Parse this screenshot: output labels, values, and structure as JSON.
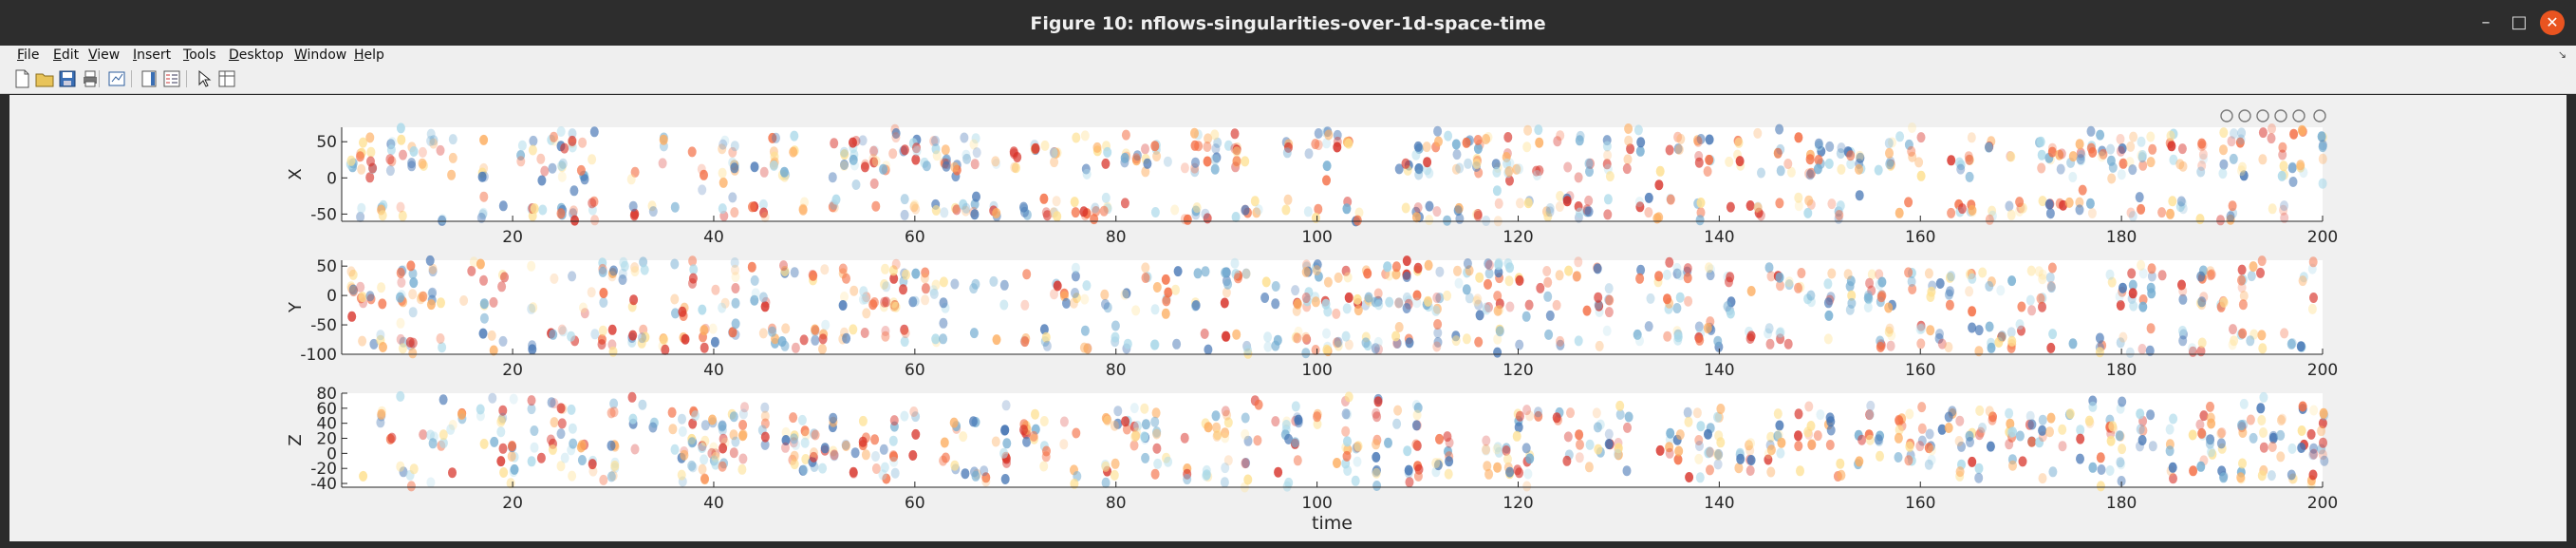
{
  "window": {
    "title": "Figure 10: nflows-singularities-over-1d-space-time",
    "minimize_glyph": "–",
    "maximize_glyph": "□",
    "close_glyph": "✕"
  },
  "menu": {
    "items": [
      {
        "label": "File",
        "mnemonic": "F"
      },
      {
        "label": "Edit",
        "mnemonic": "E"
      },
      {
        "label": "View",
        "mnemonic": "V"
      },
      {
        "label": "Insert",
        "mnemonic": "I"
      },
      {
        "label": "Tools",
        "mnemonic": "T"
      },
      {
        "label": "Desktop",
        "mnemonic": "D"
      },
      {
        "label": "Window",
        "mnemonic": "W"
      },
      {
        "label": "Help",
        "mnemonic": "H"
      }
    ],
    "dock_glyph": "↘"
  },
  "toolbar": {
    "icons": [
      "new-figure-icon",
      "open-file-icon",
      "save-icon",
      "print-icon",
      "link-plot-icon",
      "insert-colorbar-icon",
      "insert-legend-icon",
      "edit-plot-icon",
      "property-inspector-icon"
    ]
  },
  "axes_toolbar": {
    "icons": [
      "brush-icon",
      "data-tips-icon",
      "pan-icon",
      "zoom-in-icon",
      "zoom-out-icon",
      "restore-view-icon"
    ]
  },
  "chart_data": [
    {
      "type": "scatter",
      "ylabel": "X",
      "xlim": [
        3,
        200
      ],
      "ylim": [
        -60,
        70
      ],
      "xticks": [
        20,
        40,
        60,
        80,
        100,
        120,
        140,
        160,
        180,
        200
      ],
      "yticks": [
        -50,
        0,
        50
      ],
      "tick_labels_x": [
        "20",
        "40",
        "60",
        "80",
        "100",
        "120",
        "140",
        "160",
        "180",
        "200"
      ],
      "tick_labels_y": [
        "-50",
        "0",
        "50"
      ],
      "clusters": [
        {
          "y": 45,
          "spread": 12
        },
        {
          "y": 15,
          "spread": 10
        },
        {
          "y": -45,
          "spread": 10
        }
      ],
      "color_scale": [
        "#4575b4",
        "#74add1",
        "#abd9e9",
        "#fee090",
        "#fdae61",
        "#f46d43",
        "#d73027"
      ]
    },
    {
      "type": "scatter",
      "ylabel": "Y",
      "xlim": [
        3,
        200
      ],
      "ylim": [
        -100,
        60
      ],
      "xticks": [
        20,
        40,
        60,
        80,
        100,
        120,
        140,
        160,
        180,
        200
      ],
      "yticks": [
        -100,
        -50,
        0,
        50
      ],
      "tick_labels_x": [
        "20",
        "40",
        "60",
        "80",
        "100",
        "120",
        "140",
        "160",
        "180",
        "200"
      ],
      "tick_labels_y": [
        "-100",
        "-50",
        "0",
        "50"
      ],
      "clusters": [
        {
          "y": 35,
          "spread": 12
        },
        {
          "y": -10,
          "spread": 12
        },
        {
          "y": -75,
          "spread": 12
        }
      ],
      "color_scale": [
        "#4575b4",
        "#74add1",
        "#abd9e9",
        "#fee090",
        "#fdae61",
        "#f46d43",
        "#d73027"
      ]
    },
    {
      "type": "scatter",
      "xlabel": "time",
      "ylabel": "Z",
      "xlim": [
        3,
        200
      ],
      "ylim": [
        -45,
        80
      ],
      "xticks": [
        20,
        40,
        60,
        80,
        100,
        120,
        140,
        160,
        180,
        200
      ],
      "yticks": [
        -40,
        -20,
        0,
        20,
        40,
        60,
        80
      ],
      "tick_labels_x": [
        "20",
        "40",
        "60",
        "80",
        "100",
        "120",
        "140",
        "160",
        "180",
        "200"
      ],
      "tick_labels_y": [
        "-40",
        "-20",
        "0",
        "20",
        "40",
        "60",
        "80"
      ],
      "clusters": [
        {
          "y": 45,
          "spread": 14
        },
        {
          "y": 15,
          "spread": 12
        },
        {
          "y": -20,
          "spread": 12
        }
      ],
      "color_scale": [
        "#4575b4",
        "#74add1",
        "#abd9e9",
        "#fee090",
        "#fdae61",
        "#f46d43",
        "#d73027"
      ]
    }
  ]
}
